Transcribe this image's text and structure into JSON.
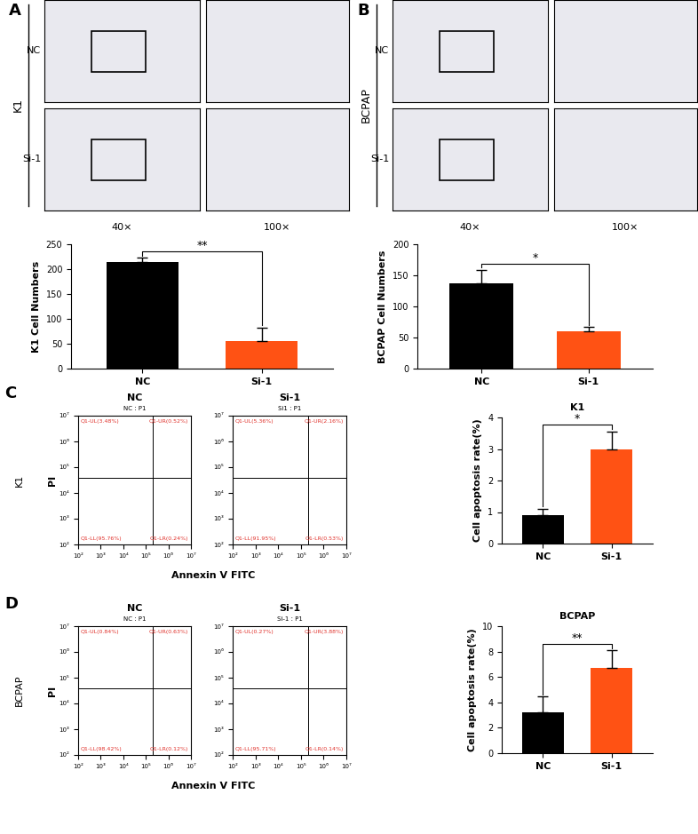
{
  "chart_data": [
    {
      "type": "image",
      "panel": "A",
      "cell_line": "K1",
      "rows": [
        "NC",
        "Si-1"
      ],
      "columns": [
        "40×",
        "100×"
      ]
    },
    {
      "type": "bar",
      "panel": "A",
      "ylabel": "K1 Cell Numbers",
      "categories": [
        "NC",
        "Si-1"
      ],
      "values": [
        215,
        55
      ],
      "errors": [
        8,
        28
      ],
      "colors": [
        "#000000",
        "#ff5214"
      ],
      "ylim": [
        0,
        250
      ],
      "yticks": [
        0,
        50,
        100,
        150,
        200,
        250
      ],
      "significance": "**"
    },
    {
      "type": "image",
      "panel": "B",
      "cell_line": "BCPAP",
      "rows": [
        "NC",
        "Si-1"
      ],
      "columns": [
        "40×",
        "100×"
      ]
    },
    {
      "type": "bar",
      "panel": "B",
      "ylabel": "BCPAP Cell Numbers",
      "categories": [
        "NC",
        "Si-1"
      ],
      "values": [
        137,
        60
      ],
      "errors": [
        22,
        7
      ],
      "colors": [
        "#000000",
        "#ff5214"
      ],
      "ylim": [
        0,
        200
      ],
      "yticks": [
        0,
        50,
        100,
        150,
        200
      ],
      "significance": "*"
    },
    {
      "type": "scatter",
      "panel": "C",
      "cell_line": "K1",
      "xlabel": "Annexin Ⅴ FITC",
      "ylabel": "PI",
      "log": true,
      "xlim": [
        100,
        10000000
      ],
      "ylim": [
        100,
        10000000
      ],
      "xticks": [
        {
          "value": 100,
          "label": "10²"
        },
        {
          "value": 1000,
          "label": "10³"
        },
        {
          "value": 10000,
          "label": "10⁴"
        },
        {
          "value": 100000,
          "label": "10⁵"
        },
        {
          "value": 1000000,
          "label": "10⁶"
        },
        {
          "value": 10000000,
          "label": "10⁷"
        }
      ],
      "yticks": [
        {
          "value": 100,
          "label": "10²"
        },
        {
          "value": 1000,
          "label": "10³"
        },
        {
          "value": 10000,
          "label": "10⁴"
        },
        {
          "value": 100000,
          "label": "10⁵"
        },
        {
          "value": 1000000,
          "label": "10⁶"
        },
        {
          "value": 10000000,
          "label": "10⁷"
        }
      ],
      "gate": {
        "x": 200000,
        "y": 40000
      },
      "plots": [
        {
          "title": "NC",
          "subtitle": "NC : P1",
          "quadrants": {
            "UL": "Q1-UL(3.48%)",
            "UR": "Q1-UR(0.52%)",
            "LL": "Q1-LL(95.76%)",
            "LR": "Q1-LR(0.24%)"
          }
        },
        {
          "title": "Si-1",
          "subtitle": "Si1 : P1",
          "quadrants": {
            "UL": "Q1-UL(5.36%)",
            "UR": "Q1-UR(2.16%)",
            "LL": "Q1-LL(91.95%)",
            "LR": "Q1-LR(0.53%)"
          }
        }
      ]
    },
    {
      "type": "bar",
      "panel": "C",
      "title": "K1",
      "ylabel": "Cell apoptosis rate(%)",
      "categories": [
        "NC",
        "Si-1"
      ],
      "values": [
        0.9,
        3.0
      ],
      "errors": [
        0.2,
        0.55
      ],
      "colors": [
        "#000000",
        "#ff5214"
      ],
      "ylim": [
        0,
        4
      ],
      "yticks": [
        0,
        1,
        2,
        3,
        4
      ],
      "significance": "*"
    },
    {
      "type": "scatter",
      "panel": "D",
      "cell_line": "BCPAP",
      "xlabel": "Annexin Ⅴ FITC",
      "ylabel": "PI",
      "log": true,
      "xlim": [
        100,
        10000000
      ],
      "ylim": [
        100,
        10000000
      ],
      "xticks": [
        {
          "value": 100,
          "label": "10²"
        },
        {
          "value": 1000,
          "label": "10³"
        },
        {
          "value": 10000,
          "label": "10⁴"
        },
        {
          "value": 100000,
          "label": "10⁵"
        },
        {
          "value": 1000000,
          "label": "10⁶"
        },
        {
          "value": 10000000,
          "label": "10⁷"
        }
      ],
      "yticks": [
        {
          "value": 100,
          "label": "10²"
        },
        {
          "value": 1000,
          "label": "10³"
        },
        {
          "value": 10000,
          "label": "10⁴"
        },
        {
          "value": 100000,
          "label": "10⁵"
        },
        {
          "value": 1000000,
          "label": "10⁶"
        },
        {
          "value": 10000000,
          "label": "10⁷"
        }
      ],
      "gate": {
        "x": 200000,
        "y": 40000
      },
      "plots": [
        {
          "title": "NC",
          "subtitle": "NC : P1",
          "quadrants": {
            "UL": "Q1-UL(0.84%)",
            "UR": "Q1-UR(0.63%)",
            "LL": "Q1-LL(98.42%)",
            "LR": "Q1-LR(0.12%)"
          }
        },
        {
          "title": "Si-1",
          "subtitle": "Si-1 : P1",
          "quadrants": {
            "UL": "Q1-UL(0.27%)",
            "UR": "Q1-UR(3.88%)",
            "LL": "Q1-LL(95.71%)",
            "LR": "Q1-LR(0.14%)"
          }
        }
      ]
    },
    {
      "type": "bar",
      "panel": "D",
      "title": "BCPAP",
      "ylabel": "Cell apoptosis rate(%)",
      "categories": [
        "NC",
        "Si-1"
      ],
      "values": [
        3.2,
        6.7
      ],
      "errors": [
        1.25,
        1.4
      ],
      "colors": [
        "#000000",
        "#ff5214"
      ],
      "ylim": [
        0,
        10
      ],
      "yticks": [
        0,
        2,
        4,
        6,
        8,
        10
      ],
      "significance": "**"
    }
  ]
}
